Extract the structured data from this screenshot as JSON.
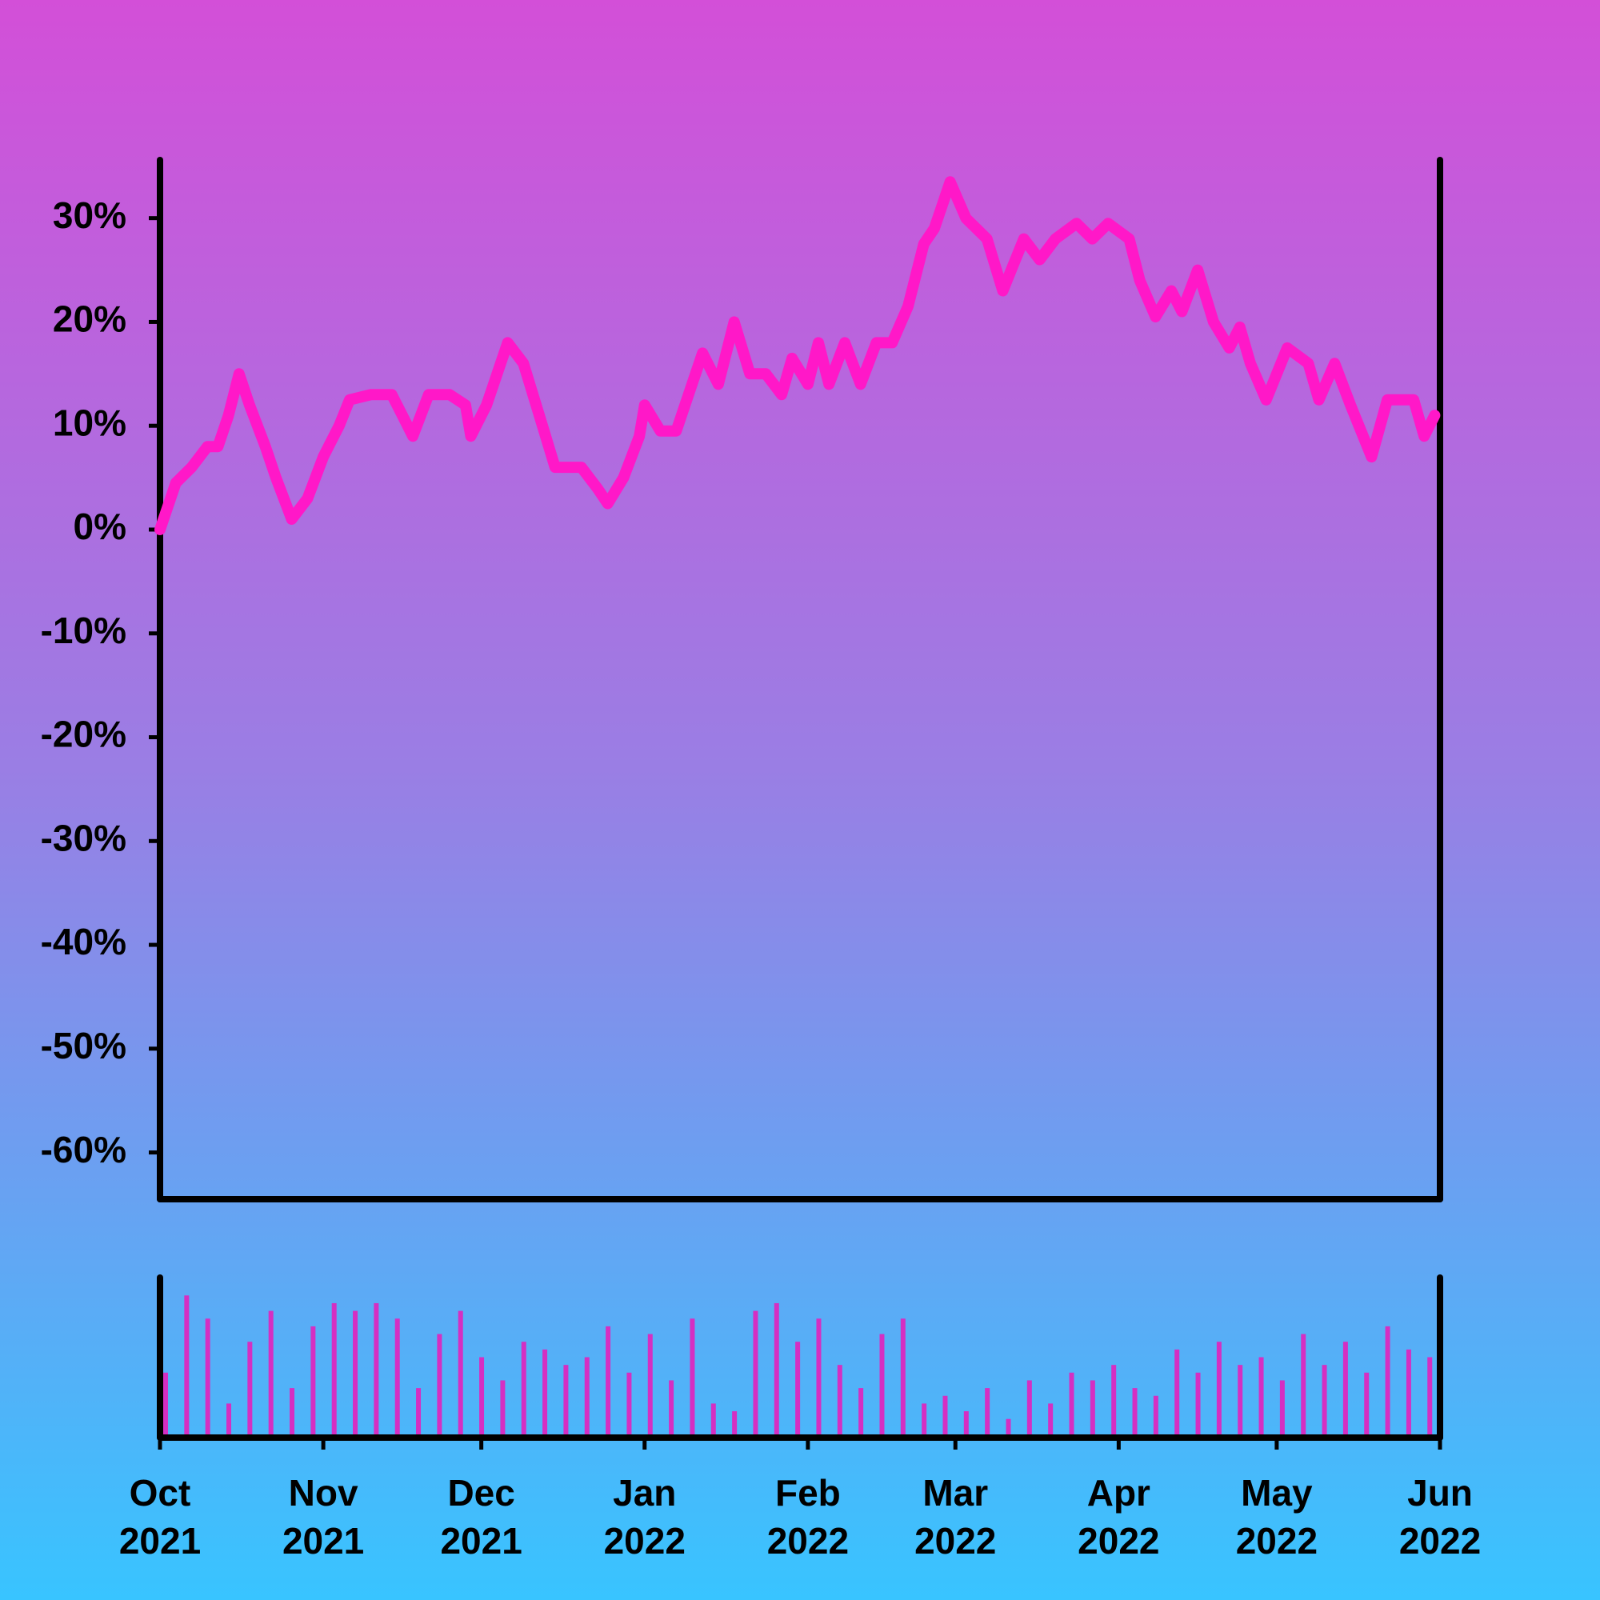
{
  "chart_data": [
    {
      "type": "line",
      "color": "#ff18c8",
      "x": [
        0,
        3,
        6,
        9,
        11,
        13,
        15,
        17,
        20,
        22,
        25,
        28,
        31,
        34,
        36,
        40,
        44,
        46,
        48,
        51,
        55,
        58,
        59,
        62,
        64,
        66,
        69,
        72,
        75,
        80,
        83,
        85,
        88,
        91,
        92,
        95,
        98,
        101,
        103,
        106,
        109,
        112,
        115,
        118,
        120,
        123,
        125,
        127,
        130,
        133,
        136,
        139,
        142,
        145,
        147,
        150,
        153,
        157,
        160,
        164,
        167,
        170,
        174,
        177,
        180,
        184,
        186,
        189,
        192,
        194,
        197,
        200,
        203,
        205,
        207,
        210,
        214,
        218,
        220,
        223,
        226,
        230,
        233,
        236,
        238,
        240,
        242
      ],
      "values": [
        0,
        4.5,
        6,
        8,
        8,
        11,
        15,
        12,
        8,
        5,
        1,
        3,
        7,
        10,
        12.5,
        13,
        13,
        11,
        9,
        13,
        13,
        12,
        9,
        12,
        15,
        18,
        16,
        11,
        6,
        6,
        4,
        2.5,
        5,
        9,
        12,
        9.5,
        9.5,
        14,
        17,
        14,
        20,
        15,
        15,
        13,
        16.5,
        14,
        18,
        14,
        18,
        14,
        18,
        18,
        21.5,
        27.5,
        29,
        33.5,
        30,
        28,
        23,
        28,
        26,
        28,
        29.5,
        28,
        29.5,
        28,
        24,
        20.5,
        23,
        21,
        25,
        20,
        17.5,
        19.5,
        16,
        12.5,
        17.5,
        16,
        12.5,
        16,
        12,
        7,
        12.5,
        12.5,
        12.5,
        9,
        11
      ],
      "xlim": [
        0,
        243
      ],
      "ylim": [
        -64.5,
        35.6
      ],
      "yticks": [
        {
          "value": -60,
          "label": "-60%"
        },
        {
          "value": -50,
          "label": "-50%"
        },
        {
          "value": -40,
          "label": "-40%"
        },
        {
          "value": -30,
          "label": "-30%"
        },
        {
          "value": -20,
          "label": "-20%"
        },
        {
          "value": -10,
          "label": "-10%"
        },
        {
          "value": 0,
          "label": "0%"
        },
        {
          "value": 10,
          "label": "10%"
        },
        {
          "value": 20,
          "label": "20%"
        },
        {
          "value": 30,
          "label": "30%"
        }
      ]
    },
    {
      "type": "bar",
      "color": "#d52fc2",
      "x": [
        0,
        4,
        8,
        12,
        16,
        20,
        24,
        28,
        32,
        36,
        40,
        44,
        48,
        52,
        56,
        60,
        64,
        68,
        72,
        76,
        80,
        84,
        88,
        92,
        96,
        100,
        104,
        108,
        112,
        116,
        120,
        124,
        128,
        132,
        136,
        140,
        144,
        148,
        152,
        156,
        160,
        164,
        168,
        172,
        176,
        180,
        184,
        188,
        192,
        196,
        200,
        204,
        208,
        212,
        216,
        220,
        224,
        228,
        232,
        236,
        240
      ],
      "values": [
        40,
        90,
        75,
        20,
        60,
        80,
        30,
        70,
        85,
        80,
        85,
        75,
        30,
        65,
        80,
        50,
        35,
        60,
        55,
        45,
        50,
        70,
        40,
        65,
        35,
        75,
        20,
        15,
        80,
        85,
        60,
        75,
        45,
        30,
        65,
        75,
        20,
        25,
        15,
        30,
        10,
        35,
        20,
        40,
        35,
        45,
        30,
        25,
        55,
        40,
        60,
        45,
        50,
        35,
        65,
        45,
        60,
        40,
        70,
        55,
        50
      ],
      "xlim": [
        0,
        243
      ],
      "ylim": [
        0,
        100
      ],
      "xticks": [
        {
          "value": 0,
          "label": "Oct 2021"
        },
        {
          "value": 31,
          "label": "Nov 2021"
        },
        {
          "value": 61,
          "label": "Dec 2021"
        },
        {
          "value": 92,
          "label": "Jan 2022"
        },
        {
          "value": 123,
          "label": "Feb 2022"
        },
        {
          "value": 151,
          "label": "Mar 2022"
        },
        {
          "value": 182,
          "label": "Apr 2022"
        },
        {
          "value": 212,
          "label": "May 2022"
        },
        {
          "value": 243,
          "label": "Jun 2022"
        }
      ]
    }
  ]
}
